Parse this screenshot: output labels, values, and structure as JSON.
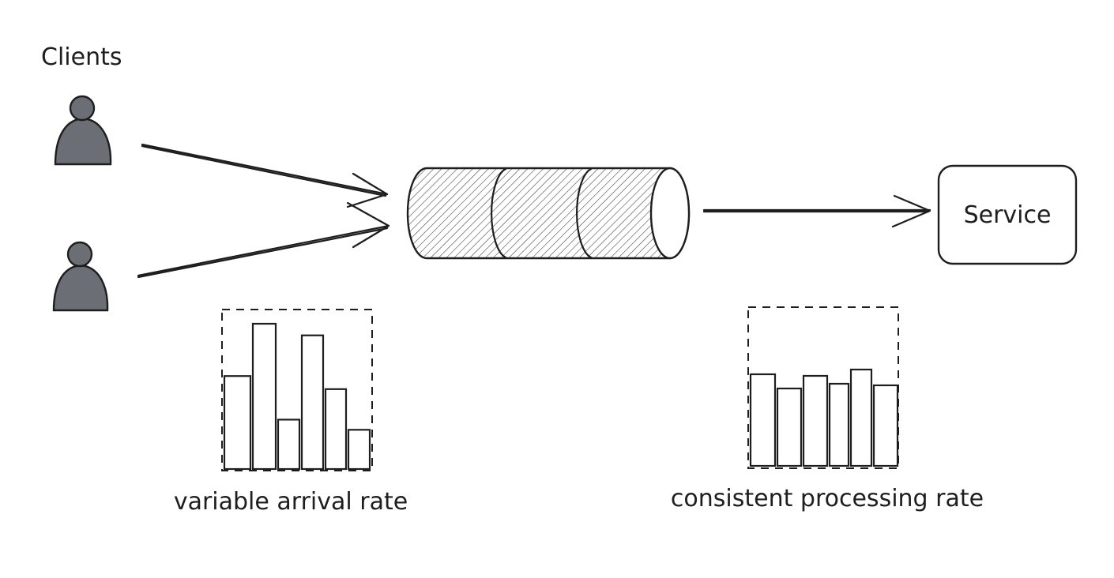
{
  "diagram": {
    "clients_label": "Clients",
    "service_label": "Service",
    "arrival_label": "variable arrival rate",
    "processing_label": "consistent processing rate",
    "colors": {
      "stroke": "#1e1e1e",
      "person_fill": "#6b6e75",
      "background": "#ffffff"
    },
    "icons": [
      "person-icon",
      "queue-cylinder",
      "arrow",
      "service-box"
    ]
  },
  "arrival_bars": [
    0.64,
    1.0,
    0.34,
    0.92,
    0.55,
    0.27
  ],
  "processing_bars": [
    0.58,
    0.49,
    0.57,
    0.52,
    0.61,
    0.51
  ]
}
